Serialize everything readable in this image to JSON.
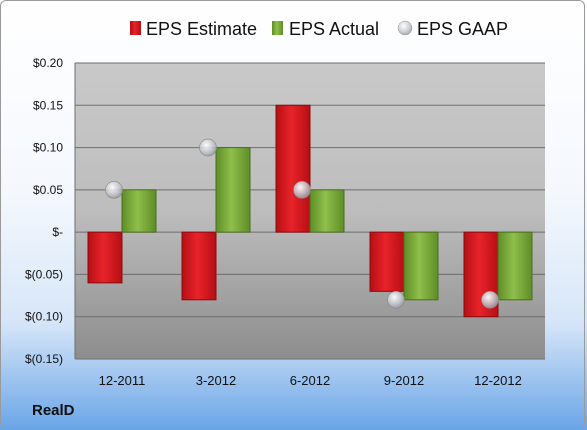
{
  "company": "RealD",
  "colors": {
    "estimate": "#d9161c",
    "actual": "#7aaa3a",
    "gaap": "#b9bec6"
  },
  "chart_data": {
    "type": "bar",
    "categories": [
      "12-2011",
      "3-2012",
      "6-2012",
      "9-2012",
      "12-2012"
    ],
    "series": [
      {
        "name": "EPS Estimate",
        "values": [
          -0.06,
          -0.08,
          0.15,
          -0.07,
          -0.1
        ]
      },
      {
        "name": "EPS Actual",
        "values": [
          0.05,
          0.1,
          0.05,
          -0.08,
          -0.08
        ]
      },
      {
        "name": "EPS GAAP",
        "values": [
          0.05,
          0.1,
          0.05,
          -0.08,
          -0.08
        ],
        "marker": "circle"
      }
    ],
    "yticks": [
      "$0.20",
      "$0.15",
      "$0.10",
      "$0.05",
      "$-",
      "$(0.05)",
      "$(0.10)",
      "$(0.15)"
    ],
    "ylim": [
      -0.15,
      0.2
    ],
    "grid": true,
    "legend_position": "top"
  }
}
